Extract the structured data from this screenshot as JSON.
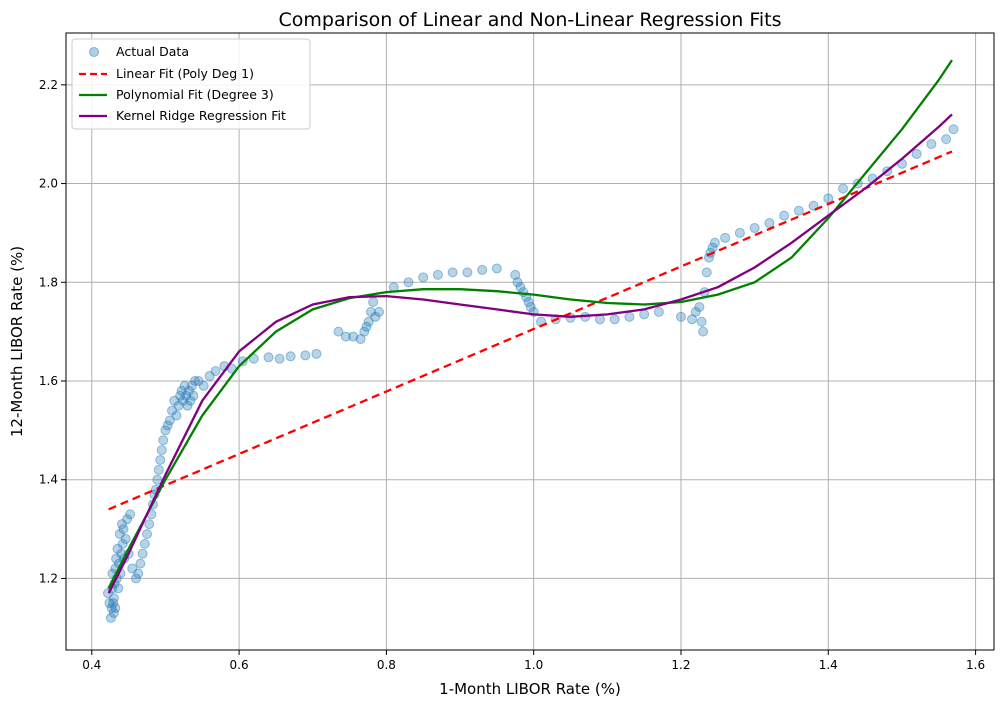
{
  "chart_data": {
    "type": "scatter",
    "title": "Comparison of Linear and Non-Linear Regression Fits",
    "xlabel": "1-Month LIBOR Rate (%)",
    "ylabel": "12-Month LIBOR Rate (%)",
    "xlim": [
      0.365,
      1.625
    ],
    "ylim": [
      1.055,
      2.305
    ],
    "xticks": [
      "0.4",
      "0.6",
      "0.8",
      "1.0",
      "1.2",
      "1.4",
      "1.6"
    ],
    "yticks": [
      "1.2",
      "1.4",
      "1.6",
      "1.8",
      "2.0",
      "2.2"
    ],
    "grid": true,
    "legend_position": "top-left",
    "scatter": {
      "name": "Actual Data",
      "color": "#1f77b4",
      "x": [
        0.422,
        0.424,
        0.426,
        0.427,
        0.428,
        0.428,
        0.429,
        0.43,
        0.43,
        0.431,
        0.432,
        0.432,
        0.433,
        0.434,
        0.435,
        0.436,
        0.437,
        0.438,
        0.439,
        0.44,
        0.441,
        0.442,
        0.443,
        0.444,
        0.446,
        0.448,
        0.45,
        0.452,
        0.455,
        0.46,
        0.463,
        0.466,
        0.469,
        0.472,
        0.475,
        0.478,
        0.481,
        0.483,
        0.485,
        0.487,
        0.489,
        0.491,
        0.493,
        0.495,
        0.497,
        0.5,
        0.503,
        0.506,
        0.509,
        0.512,
        0.515,
        0.518,
        0.52,
        0.522,
        0.524,
        0.526,
        0.528,
        0.53,
        0.532,
        0.534,
        0.536,
        0.538,
        0.54,
        0.545,
        0.552,
        0.56,
        0.568,
        0.58,
        0.59,
        0.605,
        0.62,
        0.64,
        0.655,
        0.67,
        0.69,
        0.705,
        0.735,
        0.745,
        0.755,
        0.765,
        0.77,
        0.773,
        0.776,
        0.779,
        0.782,
        0.785,
        0.79,
        0.81,
        0.83,
        0.85,
        0.87,
        0.89,
        0.91,
        0.93,
        0.95,
        0.975,
        0.978,
        0.982,
        0.986,
        0.99,
        0.993,
        0.996,
        1.0,
        1.01,
        1.03,
        1.05,
        1.07,
        1.09,
        1.11,
        1.13,
        1.15,
        1.17,
        1.2,
        1.215,
        1.22,
        1.225,
        1.228,
        1.23,
        1.232,
        1.235,
        1.238,
        1.24,
        1.243,
        1.246,
        1.26,
        1.28,
        1.3,
        1.32,
        1.34,
        1.36,
        1.38,
        1.4,
        1.42,
        1.44,
        1.46,
        1.48,
        1.5,
        1.52,
        1.54,
        1.56,
        1.57
      ],
      "y": [
        1.17,
        1.15,
        1.12,
        1.14,
        1.18,
        1.21,
        1.15,
        1.13,
        1.16,
        1.19,
        1.22,
        1.14,
        1.24,
        1.2,
        1.26,
        1.18,
        1.23,
        1.29,
        1.21,
        1.25,
        1.31,
        1.27,
        1.3,
        1.24,
        1.28,
        1.32,
        1.25,
        1.33,
        1.22,
        1.2,
        1.21,
        1.23,
        1.25,
        1.27,
        1.29,
        1.31,
        1.33,
        1.35,
        1.37,
        1.38,
        1.4,
        1.42,
        1.44,
        1.46,
        1.48,
        1.5,
        1.51,
        1.52,
        1.54,
        1.56,
        1.53,
        1.55,
        1.57,
        1.58,
        1.56,
        1.59,
        1.57,
        1.55,
        1.58,
        1.56,
        1.59,
        1.57,
        1.6,
        1.6,
        1.59,
        1.61,
        1.62,
        1.63,
        1.625,
        1.64,
        1.645,
        1.648,
        1.645,
        1.65,
        1.652,
        1.655,
        1.7,
        1.69,
        1.69,
        1.685,
        1.7,
        1.71,
        1.72,
        1.74,
        1.76,
        1.73,
        1.74,
        1.79,
        1.8,
        1.81,
        1.815,
        1.82,
        1.82,
        1.825,
        1.828,
        1.815,
        1.8,
        1.79,
        1.78,
        1.77,
        1.76,
        1.75,
        1.74,
        1.72,
        1.725,
        1.728,
        1.73,
        1.725,
        1.725,
        1.73,
        1.735,
        1.74,
        1.73,
        1.725,
        1.74,
        1.75,
        1.72,
        1.7,
        1.78,
        1.82,
        1.85,
        1.86,
        1.87,
        1.88,
        1.89,
        1.9,
        1.91,
        1.92,
        1.935,
        1.945,
        1.955,
        1.97,
        1.99,
        2.0,
        2.01,
        2.025,
        2.04,
        2.06,
        2.08,
        2.09,
        2.11
      ]
    },
    "series": [
      {
        "name": "Linear Fit (Poly Deg 1)",
        "color": "#ff0000",
        "style": "dashed",
        "x": [
          0.423,
          1.568
        ],
        "y": [
          1.34,
          2.065
        ]
      },
      {
        "name": "Polynomial Fit (Degree 3)",
        "color": "#008000",
        "style": "solid",
        "x": [
          0.423,
          0.45,
          0.5,
          0.55,
          0.6,
          0.65,
          0.7,
          0.75,
          0.8,
          0.85,
          0.9,
          0.95,
          1.0,
          1.05,
          1.1,
          1.15,
          1.2,
          1.25,
          1.3,
          1.35,
          1.4,
          1.45,
          1.5,
          1.55,
          1.568
        ],
        "y": [
          1.18,
          1.26,
          1.4,
          1.53,
          1.63,
          1.7,
          1.745,
          1.768,
          1.78,
          1.786,
          1.786,
          1.782,
          1.775,
          1.765,
          1.758,
          1.755,
          1.76,
          1.775,
          1.8,
          1.85,
          1.93,
          2.02,
          2.11,
          2.21,
          2.25
        ]
      },
      {
        "name": "Kernel Ridge Regression Fit",
        "color": "#800080",
        "style": "solid",
        "x": [
          0.423,
          0.45,
          0.5,
          0.55,
          0.6,
          0.65,
          0.7,
          0.75,
          0.8,
          0.85,
          0.9,
          0.95,
          1.0,
          1.05,
          1.1,
          1.15,
          1.2,
          1.25,
          1.3,
          1.35,
          1.4,
          1.45,
          1.5,
          1.55,
          1.568
        ],
        "y": [
          1.17,
          1.25,
          1.41,
          1.56,
          1.66,
          1.72,
          1.755,
          1.77,
          1.772,
          1.765,
          1.755,
          1.745,
          1.735,
          1.73,
          1.735,
          1.745,
          1.765,
          1.79,
          1.83,
          1.88,
          1.935,
          1.99,
          2.05,
          2.115,
          2.14
        ]
      }
    ]
  }
}
